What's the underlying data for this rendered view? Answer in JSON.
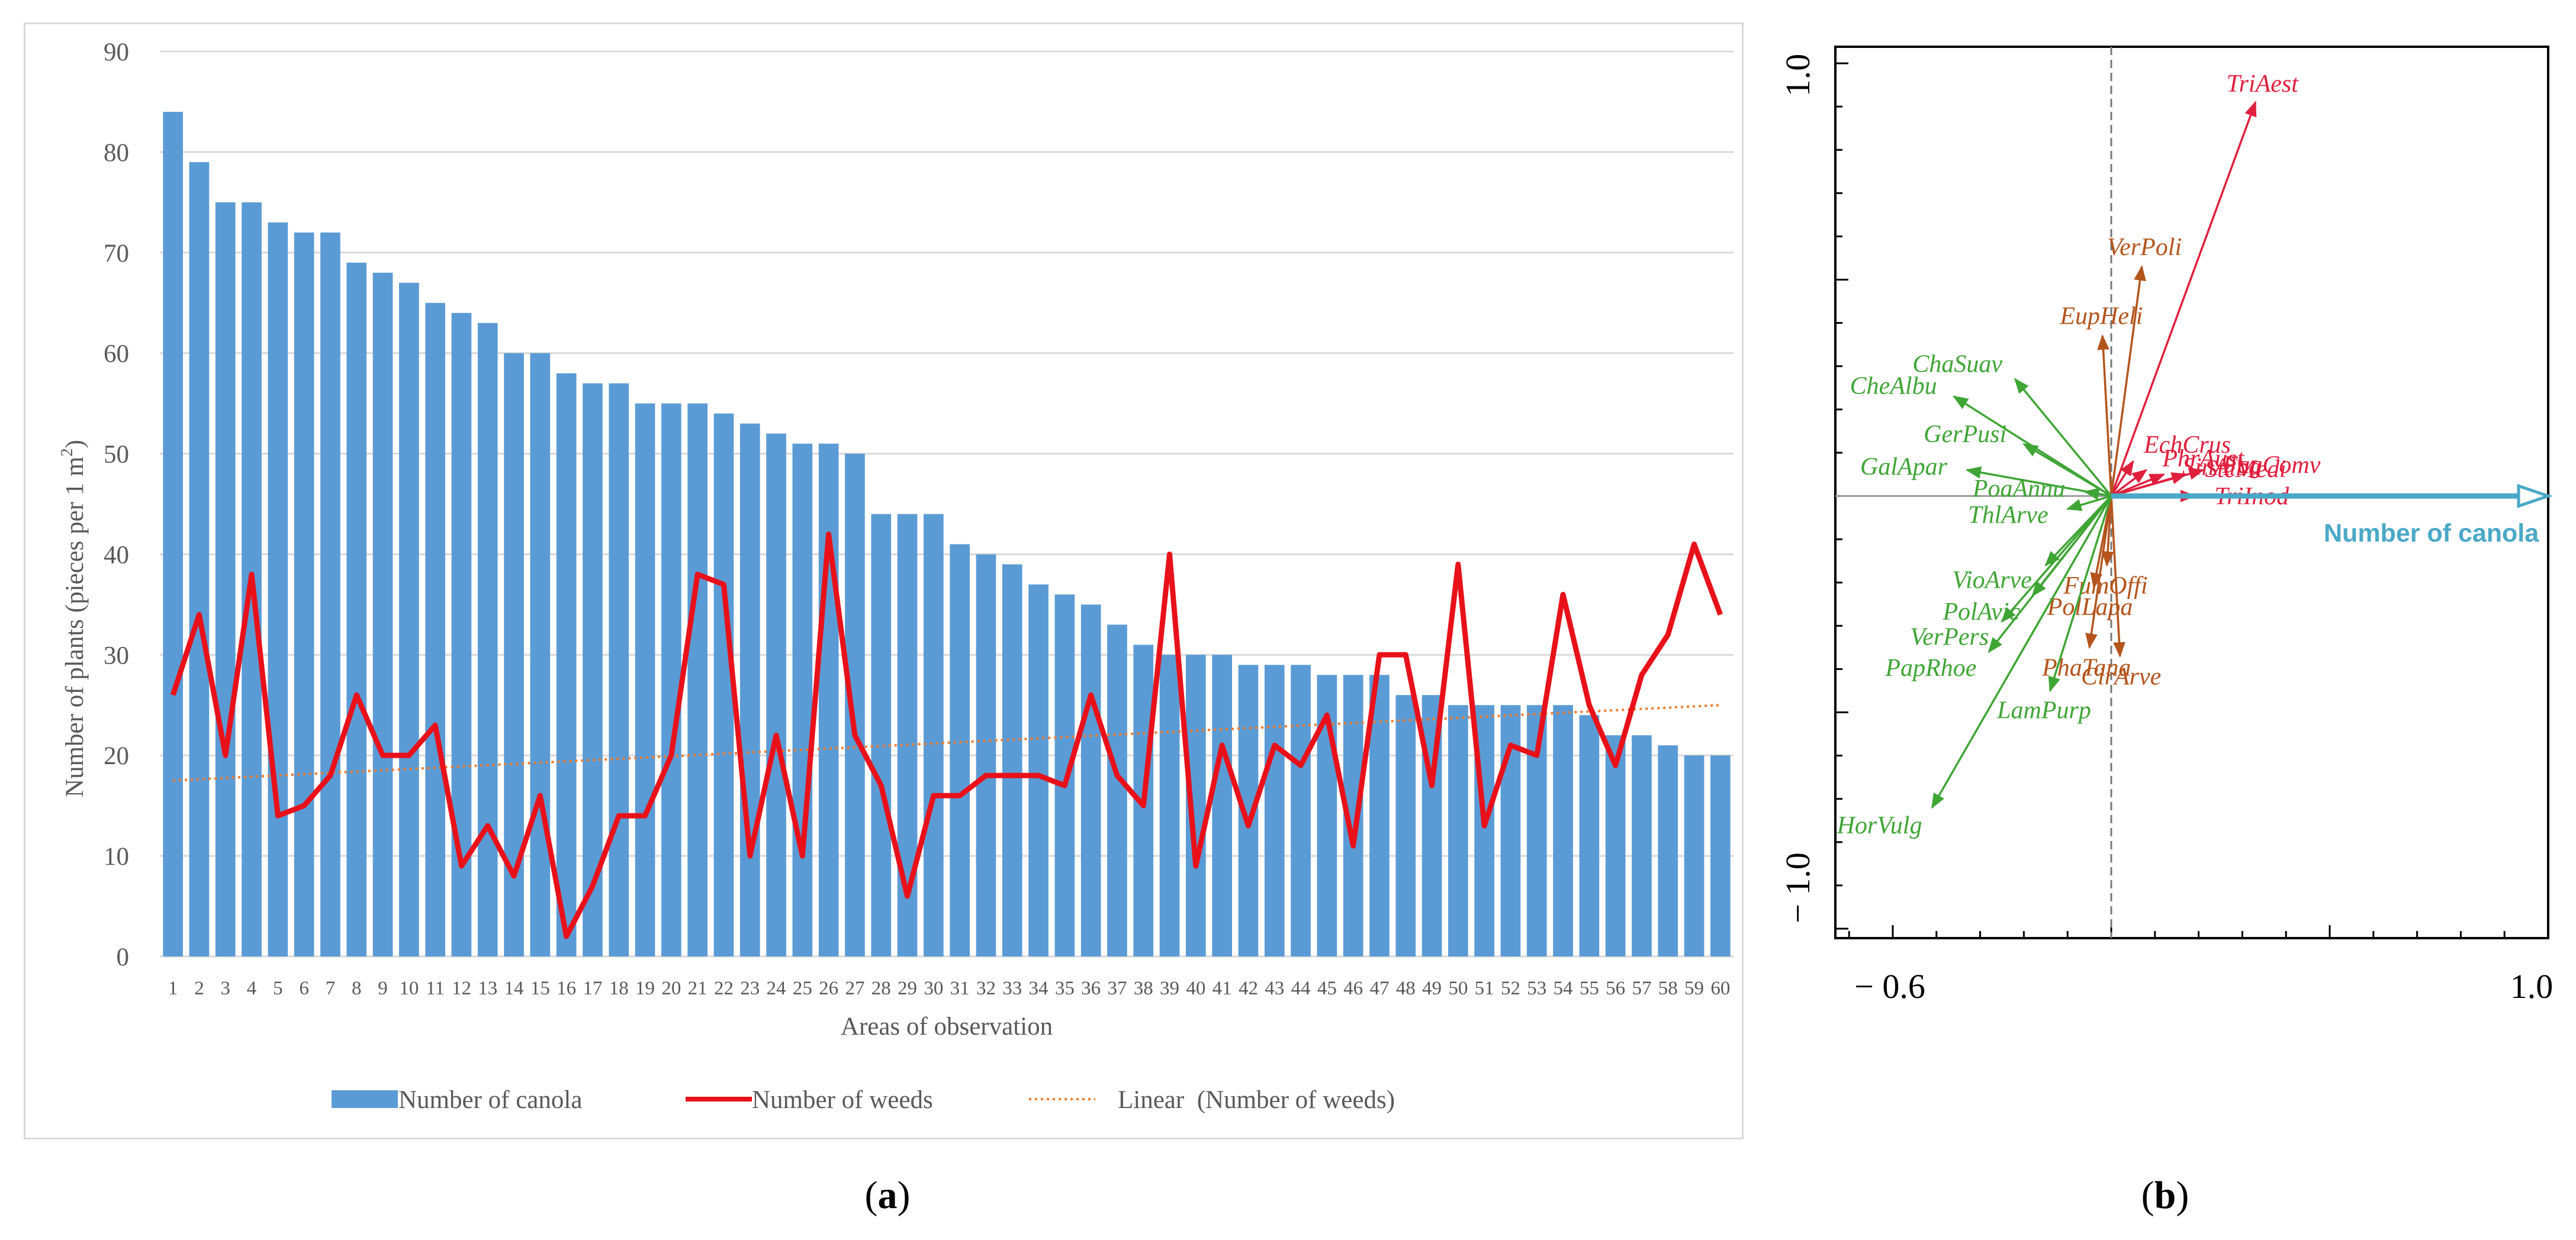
{
  "chart_data": [
    {
      "type": "bar",
      "panel": "a",
      "caption_letter": "a",
      "ylabel_main": "Number of plants (pieces per 1 m",
      "ylabel_sup": "2",
      "ylabel_end": ")",
      "xlabel": "Areas of observation",
      "ylim": [
        0,
        90
      ],
      "yticks": [
        0,
        10,
        20,
        30,
        40,
        50,
        60,
        70,
        80,
        90
      ],
      "categories": [
        "1",
        "2",
        "3",
        "4",
        "5",
        "6",
        "7",
        "8",
        "9",
        "10",
        "11",
        "12",
        "13",
        "14",
        "15",
        "16",
        "17",
        "18",
        "19",
        "20",
        "21",
        "22",
        "23",
        "24",
        "25",
        "26",
        "27",
        "28",
        "29",
        "30",
        "31",
        "32",
        "33",
        "34",
        "35",
        "36",
        "37",
        "38",
        "39",
        "40",
        "41",
        "42",
        "43",
        "44",
        "45",
        "46",
        "47",
        "48",
        "49",
        "50",
        "51",
        "52",
        "53",
        "54",
        "55",
        "56",
        "57",
        "58",
        "59",
        "60"
      ],
      "series": [
        {
          "name": "Number of canola",
          "kind": "bar",
          "color": "#5b9bd5",
          "values": [
            84,
            79,
            75,
            75,
            73,
            72,
            72,
            69,
            68,
            67,
            65,
            64,
            63,
            60,
            60,
            58,
            57,
            57,
            55,
            55,
            55,
            54,
            53,
            52,
            51,
            51,
            50,
            44,
            44,
            44,
            41,
            40,
            39,
            37,
            36,
            35,
            33,
            31,
            30,
            30,
            30,
            29,
            29,
            29,
            28,
            28,
            28,
            26,
            26,
            25,
            25,
            25,
            25,
            25,
            24,
            22,
            22,
            21,
            20,
            20
          ]
        },
        {
          "name": "Number of weeds",
          "kind": "line",
          "color": "#e8111a",
          "values": [
            26,
            34,
            20,
            38,
            14,
            15,
            18,
            26,
            20,
            20,
            23,
            9,
            13,
            8,
            16,
            2,
            7,
            14,
            14,
            20,
            38,
            37,
            10,
            22,
            10,
            42,
            22,
            17,
            6,
            16,
            16,
            18,
            18,
            18,
            17,
            26,
            18,
            15,
            40,
            9,
            21,
            13,
            21,
            19,
            24,
            11,
            30,
            30,
            17,
            39,
            13,
            21,
            20,
            36,
            25,
            19,
            28,
            32,
            41,
            34
          ]
        },
        {
          "name": "Linear  (Number of weeds)",
          "kind": "trend",
          "color": "#ed7d31",
          "start": 17.5,
          "end": 25.0
        }
      ]
    },
    {
      "type": "scatter",
      "subtype": "ordination-biplot",
      "panel": "b",
      "caption_letter": "b",
      "xlim": [
        -0.6,
        1.0
      ],
      "ylim": [
        -1.0,
        1.0
      ],
      "x_tick_labels": [
        "− 0.6",
        "1.0"
      ],
      "y_tick_labels": [
        "− 1.0",
        "1.0"
      ],
      "environment_arrow": {
        "label": "Number of canola",
        "x": 1.0,
        "y": 0.0,
        "color": "#4aa8c7"
      },
      "species": [
        {
          "label": "TriAest",
          "x": 0.33,
          "y": 0.91,
          "color": "#e01f3d",
          "group": "red"
        },
        {
          "label": "TriInod",
          "x": 0.19,
          "y": 0.0,
          "color": "#e01f3d",
          "group": "red"
        },
        {
          "label": "FagComv",
          "x": 0.21,
          "y": 0.06,
          "color": "#e01f3d",
          "group": "red"
        },
        {
          "label": "SteMedi",
          "x": 0.17,
          "y": 0.05,
          "color": "#e01f3d",
          "group": "red"
        },
        {
          "label": "SinAlba",
          "x": 0.12,
          "y": 0.05,
          "color": "#e01f3d",
          "group": "red"
        },
        {
          "label": "PhrAust",
          "x": 0.08,
          "y": 0.06,
          "color": "#e01f3d",
          "group": "red"
        },
        {
          "label": "EchCrus",
          "x": 0.05,
          "y": 0.08,
          "color": "#e01f3d",
          "group": "red"
        },
        {
          "label": "VerPoli",
          "x": 0.07,
          "y": 0.53,
          "color": "#b4541c",
          "group": "brown"
        },
        {
          "label": "EupHeli",
          "x": -0.02,
          "y": 0.37,
          "color": "#b4541c",
          "group": "brown"
        },
        {
          "label": "FumOffi",
          "x": -0.01,
          "y": -0.16,
          "color": "#b4541c",
          "group": "brown"
        },
        {
          "label": "PolLapa",
          "x": -0.04,
          "y": -0.21,
          "color": "#b4541c",
          "group": "brown"
        },
        {
          "label": "PhaTana",
          "x": -0.05,
          "y": -0.35,
          "color": "#b4541c",
          "group": "brown"
        },
        {
          "label": "CirArve",
          "x": 0.02,
          "y": -0.37,
          "color": "#b4541c",
          "group": "brown"
        },
        {
          "label": "ChaSuav",
          "x": -0.22,
          "y": 0.27,
          "color": "#3fa535",
          "group": "green"
        },
        {
          "label": "CheAlbu",
          "x": -0.36,
          "y": 0.23,
          "color": "#3fa535",
          "group": "green"
        },
        {
          "label": "GerPusi",
          "x": -0.2,
          "y": 0.12,
          "color": "#3fa535",
          "group": "green"
        },
        {
          "label": "GalApar",
          "x": -0.33,
          "y": 0.06,
          "color": "#3fa535",
          "group": "green"
        },
        {
          "label": "PoaAnnu",
          "x": -0.06,
          "y": 0.01,
          "color": "#3fa535",
          "group": "green"
        },
        {
          "label": "ThlArve",
          "x": -0.1,
          "y": -0.03,
          "color": "#3fa535",
          "group": "green"
        },
        {
          "label": "VioArve",
          "x": -0.15,
          "y": -0.16,
          "color": "#3fa535",
          "group": "green"
        },
        {
          "label": "PolAvic",
          "x": -0.18,
          "y": -0.23,
          "color": "#3fa535",
          "group": "green"
        },
        {
          "label": "VerPers",
          "x": -0.25,
          "y": -0.29,
          "color": "#3fa535",
          "group": "green"
        },
        {
          "label": "PapRhoe",
          "x": -0.28,
          "y": -0.36,
          "color": "#3fa535",
          "group": "green"
        },
        {
          "label": "LamPurp",
          "x": -0.14,
          "y": -0.45,
          "color": "#3fa535",
          "group": "green"
        },
        {
          "label": "HorVulg",
          "x": -0.41,
          "y": -0.72,
          "color": "#3fa535",
          "group": "green"
        }
      ]
    }
  ]
}
